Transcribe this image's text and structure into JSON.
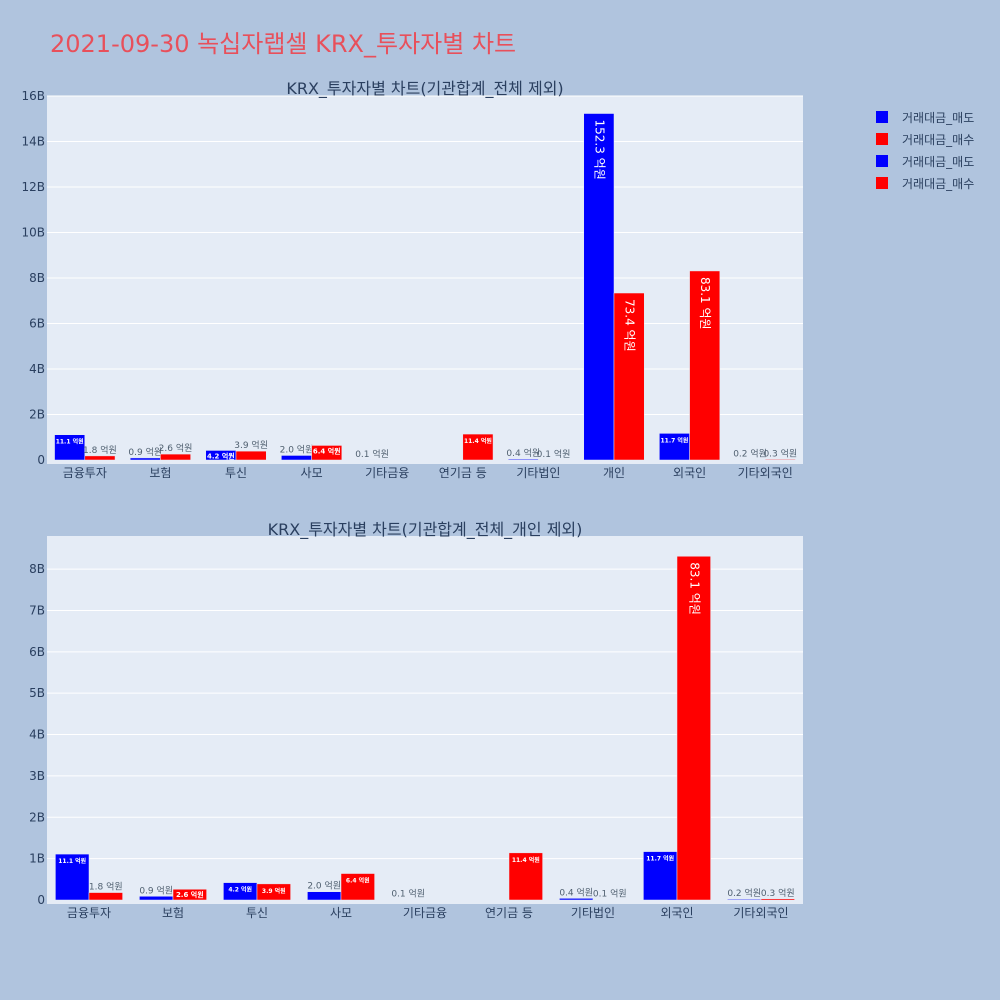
{
  "page": {
    "title": "2021-09-30 녹십자랩셀 KRX_투자자별 차트"
  },
  "legend": [
    {
      "label": "거래대금_매도",
      "color": "#0000ff"
    },
    {
      "label": "거래대금_매수",
      "color": "#ff0000"
    },
    {
      "label": "거래대금_매도",
      "color": "#0000ff"
    },
    {
      "label": "거래대금_매수",
      "color": "#ff0000"
    }
  ],
  "colors": {
    "sell": "#0000ff",
    "buy": "#ff0000",
    "plot_bg": "#e5ecf6",
    "grid": "#ffffff"
  },
  "chart_data": [
    {
      "type": "bar",
      "title": "KRX_투자자별 차트(기관합계_전체 제외)",
      "categories": [
        "금융투자",
        "보험",
        "투신",
        "사모",
        "기타금융",
        "연기금 등",
        "기타법인",
        "개인",
        "외국인",
        "기타외국인"
      ],
      "yticks": [
        "0",
        "2B",
        "4B",
        "6B",
        "8B",
        "10B",
        "12B",
        "14B",
        "16B"
      ],
      "ylim": [
        0,
        16
      ],
      "series": [
        {
          "name": "거래대금_매도",
          "values": [
            1.11,
            0.09,
            0.42,
            0.2,
            0.01,
            0,
            0.04,
            15.23,
            1.17,
            0.02
          ],
          "labels": [
            "11.1 억원",
            "0.9 억원",
            "4.2 억원",
            "2.0 억원",
            "0.1 억원",
            "",
            "0.4 억원",
            "152.3 억원",
            "11.7 억원",
            "0.2 억원"
          ]
        },
        {
          "name": "거래대금_매수",
          "values": [
            0.18,
            0.26,
            0.39,
            0.64,
            0,
            1.14,
            0.01,
            7.34,
            8.31,
            0.03
          ],
          "labels": [
            "1.8 억원",
            "2.6 억원",
            "3.9 억원",
            "6.4 억원",
            "",
            "11.4 억원",
            "0.1 억원",
            "73.4 억원",
            "83.1 억원",
            "0.3 억원"
          ]
        }
      ]
    },
    {
      "type": "bar",
      "title": "KRX_투자자별 차트(기관합계_전체_개인 제외)",
      "categories": [
        "금융투자",
        "보험",
        "투신",
        "사모",
        "기타금융",
        "연기금 등",
        "기타법인",
        "외국인",
        "기타외국인"
      ],
      "yticks": [
        "0",
        "1B",
        "2B",
        "3B",
        "4B",
        "5B",
        "6B",
        "7B",
        "8B"
      ],
      "ylim": [
        0,
        8.8
      ],
      "series": [
        {
          "name": "거래대금_매도",
          "values": [
            1.11,
            0.09,
            0.42,
            0.2,
            0.01,
            0,
            0.04,
            1.17,
            0.02
          ],
          "labels": [
            "11.1 억원",
            "0.9 억원",
            "4.2 억원",
            "2.0 억원",
            "0.1 억원",
            "",
            "0.4 억원",
            "11.7 억원",
            "0.2 억원"
          ]
        },
        {
          "name": "거래대금_매수",
          "values": [
            0.18,
            0.26,
            0.39,
            0.64,
            0,
            1.14,
            0.01,
            8.31,
            0.03
          ],
          "labels": [
            "1.8 억원",
            "2.6 억원",
            "3.9 억원",
            "6.4 억원",
            "",
            "11.4 억원",
            "0.1 억원",
            "83.1 억원",
            "0.3 억원"
          ]
        }
      ]
    }
  ]
}
